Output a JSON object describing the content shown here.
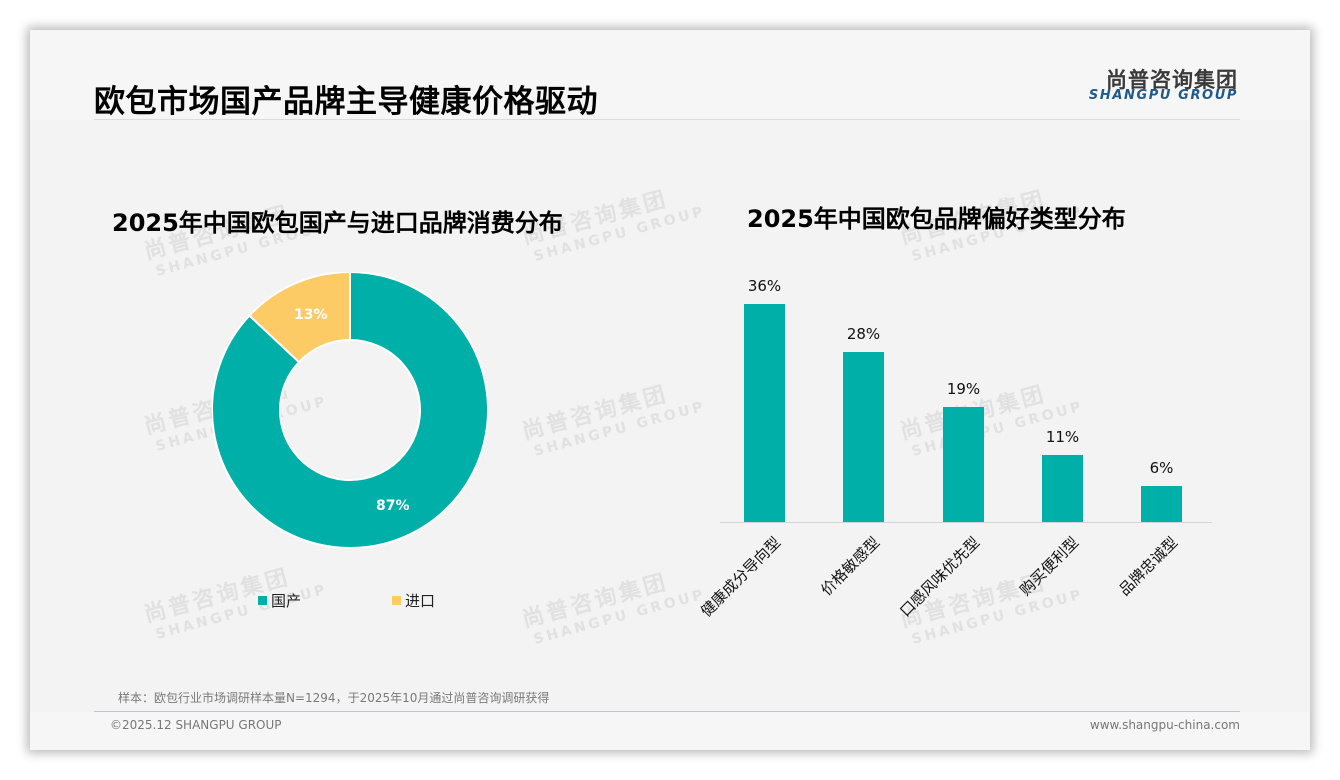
{
  "page": {
    "title": "欧包市场国产品牌主导健康价格驱动",
    "logo": {
      "cn": "尚普咨询集团",
      "en": "SHANGPU GROUP"
    },
    "watermark": {
      "cn": "尚普咨询集团",
      "en": "SHANGPU GROUP"
    },
    "footnote": "样本：欧包行业市场调研样本量N=1294，于2025年10月通过尚普咨询调研获得",
    "copyright": "©2025.12 SHANGPU GROUP",
    "website": "www.shangpu-china.com"
  },
  "colors": {
    "teal": "#00b0a8",
    "yellow": "#fdcb65",
    "background": "#f3f3f3",
    "logo_blue": "#1f5a8a"
  },
  "pie": {
    "title": "2025年中国欧包国产与进口品牌消费分布",
    "slices": [
      {
        "label": "国产",
        "value": 87,
        "display": "87%",
        "color": "#00b0a8"
      },
      {
        "label": "进口",
        "value": 13,
        "display": "13%",
        "color": "#fdcb65"
      }
    ]
  },
  "bar": {
    "title": "2025年中国欧包品牌偏好类型分布",
    "items": [
      {
        "label": "健康成分导向型",
        "value": 36,
        "display": "36%"
      },
      {
        "label": "价格敏感型",
        "value": 28,
        "display": "28%"
      },
      {
        "label": "口感风味优先型",
        "value": 19,
        "display": "19%"
      },
      {
        "label": "购买便利型",
        "value": 11,
        "display": "11%"
      },
      {
        "label": "品牌忠诚型",
        "value": 6,
        "display": "6%"
      }
    ]
  },
  "chart_data": [
    {
      "type": "pie",
      "variant": "donut",
      "title": "2025年中国欧包国产与进口品牌消费分布",
      "categories": [
        "国产",
        "进口"
      ],
      "values": [
        87,
        13
      ],
      "unit": "%",
      "legend": [
        "国产",
        "进口"
      ],
      "legend_position": "bottom",
      "colors": [
        "#00b0a8",
        "#fdcb65"
      ]
    },
    {
      "type": "bar",
      "title": "2025年中国欧包品牌偏好类型分布",
      "categories": [
        "健康成分导向型",
        "价格敏感型",
        "口感风味优先型",
        "购买便利型",
        "品牌忠诚型"
      ],
      "values": [
        36,
        28,
        19,
        11,
        6
      ],
      "unit": "%",
      "xlabel": "",
      "ylabel": "",
      "ylim": [
        0,
        40
      ],
      "grid": false,
      "data_labels": true,
      "color": "#00b0a8"
    }
  ]
}
